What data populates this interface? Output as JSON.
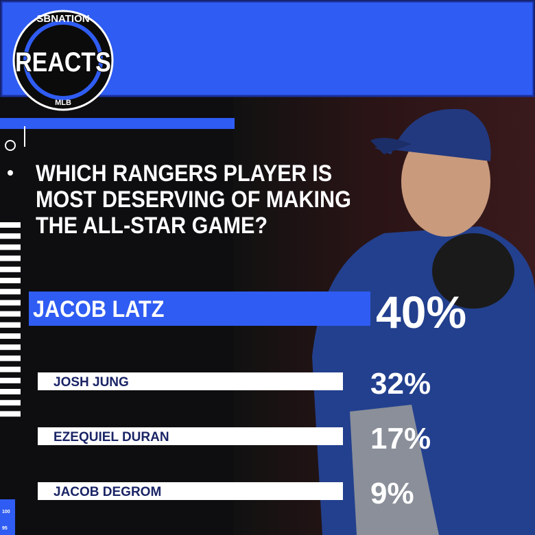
{
  "logo": {
    "network": "SBNATION",
    "title": "REACTS",
    "league": "MLB"
  },
  "question": [
    "WHICH RANGERS PLAYER IS",
    "MOST DESERVING OF MAKING",
    "THE ALL-STAR GAME?"
  ],
  "options": [
    {
      "name": "JACOB LATZ",
      "percent": "40%"
    },
    {
      "name": "JOSH JUNG",
      "percent": "32%"
    },
    {
      "name": "EZEQUIEL DURAN",
      "percent": "17%"
    },
    {
      "name": "JACOB DEGROM",
      "percent": "9%"
    }
  ],
  "side_labels": [
    "100",
    "95"
  ]
}
